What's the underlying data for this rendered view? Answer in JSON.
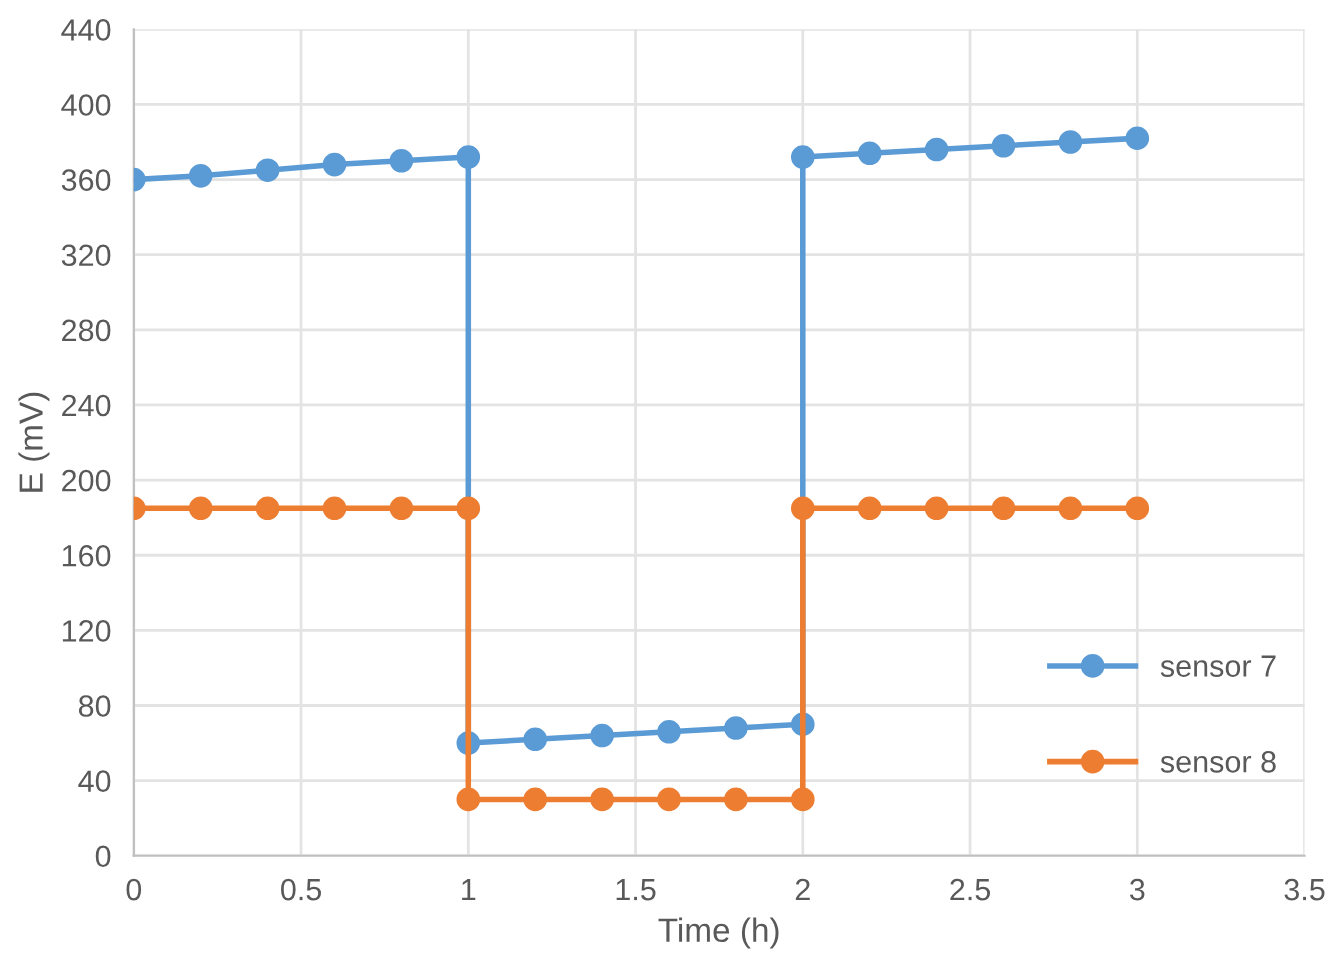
{
  "chart_data": {
    "type": "line",
    "xlabel": "Time (h)",
    "ylabel": "E (mV)",
    "xlim": [
      0,
      3.5
    ],
    "xticks": [
      0,
      0.5,
      1,
      1.5,
      2,
      2.5,
      3,
      3.5
    ],
    "ylim": [
      0,
      440
    ],
    "yticks": [
      0,
      40,
      80,
      120,
      160,
      200,
      240,
      280,
      320,
      360,
      400,
      440
    ],
    "grid": true,
    "legend": "lower right",
    "marker": "circle",
    "line_style": "solid",
    "series": [
      {
        "name": "sensor 7",
        "color": "#5b9bd5",
        "x": [
          0,
          0.2,
          0.4,
          0.6,
          0.8,
          1,
          1,
          1.2,
          1.4,
          1.6,
          1.8,
          2,
          2,
          2.2,
          2.4,
          2.6,
          2.8,
          3
        ],
        "values": [
          360,
          362,
          365,
          368,
          370,
          372,
          60,
          62,
          64,
          66,
          68,
          70,
          372,
          374,
          376,
          378,
          380,
          382
        ]
      },
      {
        "name": "sensor 8",
        "color": "#ed7d31",
        "x": [
          0,
          0.2,
          0.4,
          0.6,
          0.8,
          1,
          1,
          1.2,
          1.4,
          1.6,
          1.8,
          2,
          2,
          2.2,
          2.4,
          2.6,
          2.8,
          3
        ],
        "values": [
          185,
          185,
          185,
          185,
          185,
          185,
          30,
          30,
          30,
          30,
          30,
          30,
          185,
          185,
          185,
          185,
          185,
          185
        ]
      }
    ]
  }
}
